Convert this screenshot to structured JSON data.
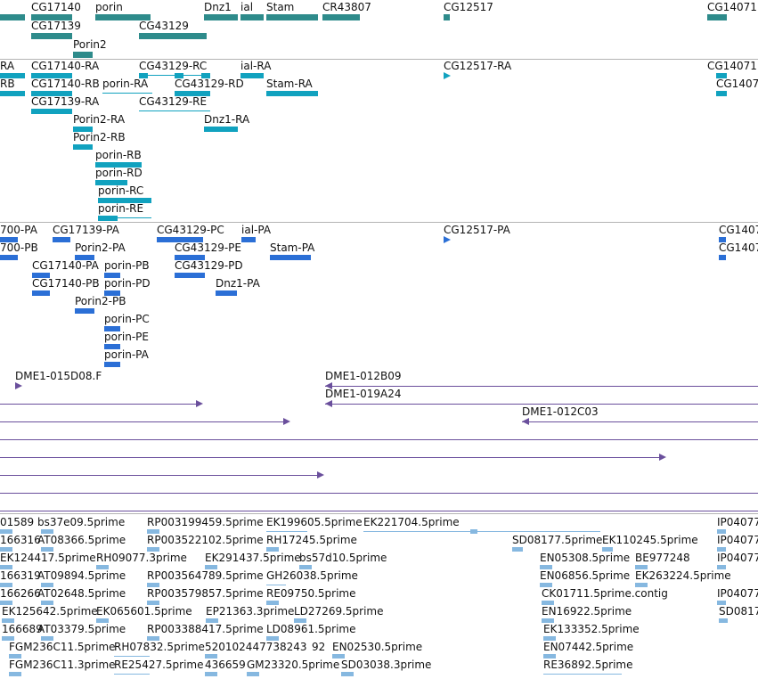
{
  "colors": {
    "gene": "#2e8b8b",
    "transcript": "#11a2bf",
    "protein": "#2b6fd6",
    "clone": "#6a4f9c",
    "est": "#86b8e0",
    "separator": "#b4b4b4"
  },
  "tracks": {
    "genes": [
      {
        "label": "CG17140",
        "color": "gene"
      },
      {
        "label": "porin",
        "color": "gene"
      },
      {
        "label": "Dnz1",
        "color": "gene"
      },
      {
        "label": "ial",
        "color": "gene"
      },
      {
        "label": "Stam",
        "color": "gene"
      },
      {
        "label": "CR43807",
        "color": "gene"
      },
      {
        "label": "CG12517",
        "color": "gene"
      },
      {
        "label": "CG14071",
        "color": "gene"
      },
      {
        "label": "CG17139",
        "color": "gene"
      },
      {
        "label": "CG43129",
        "color": "gene"
      },
      {
        "label": "Porin2",
        "color": "gene"
      }
    ],
    "transcripts": [
      {
        "label": "RA"
      },
      {
        "label": "CG17140-RA"
      },
      {
        "label": "CG43129-RC"
      },
      {
        "label": "ial-RA"
      },
      {
        "label": "CG12517-RA"
      },
      {
        "label": "CG14071"
      },
      {
        "label": "RB"
      },
      {
        "label": "CG17140-RB"
      },
      {
        "label": "porin-RA"
      },
      {
        "label": "CG43129-RD"
      },
      {
        "label": "Stam-RA"
      },
      {
        "label": "CG1407"
      },
      {
        "label": "CG17139-RA"
      },
      {
        "label": "CG43129-RE"
      },
      {
        "label": "Porin2-RA"
      },
      {
        "label": "Dnz1-RA"
      },
      {
        "label": "Porin2-RB"
      },
      {
        "label": "porin-RB"
      },
      {
        "label": "porin-RD"
      },
      {
        "label": "porin-RC"
      },
      {
        "label": "porin-RE"
      }
    ],
    "proteins": [
      {
        "label": "700-PA"
      },
      {
        "label": "CG17139-PA"
      },
      {
        "label": "CG43129-PC"
      },
      {
        "label": "ial-PA"
      },
      {
        "label": "CG12517-PA"
      },
      {
        "label": "CG1407"
      },
      {
        "label": "700-PB"
      },
      {
        "label": "Porin2-PA"
      },
      {
        "label": "CG43129-PE"
      },
      {
        "label": "Stam-PA"
      },
      {
        "label": "CG1407"
      },
      {
        "label": "CG17140-PA"
      },
      {
        "label": "porin-PB"
      },
      {
        "label": "CG43129-PD"
      },
      {
        "label": "CG17140-PB"
      },
      {
        "label": "porin-PD"
      },
      {
        "label": "Dnz1-PA"
      },
      {
        "label": "Porin2-PB"
      },
      {
        "label": "porin-PC"
      },
      {
        "label": "porin-PE"
      },
      {
        "label": "porin-PA"
      }
    ],
    "clones": [
      {
        "label": "DME1-015D08.F"
      },
      {
        "label": "DME1-012B09"
      },
      {
        "label": "DME1-019A24"
      },
      {
        "label": "DME1-012C03"
      }
    ],
    "ests": [
      {
        "label": "01589"
      },
      {
        "label": "bs37e09.5prime"
      },
      {
        "label": "RP003199459.5prime"
      },
      {
        "label": "EK199605.5prime"
      },
      {
        "label": "EK221704.5prime"
      },
      {
        "label": "IP04077"
      },
      {
        "label": "166316"
      },
      {
        "label": "AT08366.5prime"
      },
      {
        "label": "RP003522102.5prime"
      },
      {
        "label": "RH17245.5prime"
      },
      {
        "label": "SD08177.5prime"
      },
      {
        "label": "EK110245.5prime"
      },
      {
        "label": "IP04077"
      },
      {
        "label": "EK124417.5prime"
      },
      {
        "label": "RH09077.3prime"
      },
      {
        "label": "EK291437.5prime"
      },
      {
        "label": "bs57d10.5prime"
      },
      {
        "label": "EN05308.5prime"
      },
      {
        "label": "BE977248"
      },
      {
        "label": "IP04077"
      },
      {
        "label": "166319"
      },
      {
        "label": "AT09894.5prime"
      },
      {
        "label": "RP003564789.5prime"
      },
      {
        "label": "GH26038.5prime"
      },
      {
        "label": "EN06856.5prime"
      },
      {
        "label": "EK263224.5prime"
      },
      {
        "label": "166266"
      },
      {
        "label": "AT02648.5prime"
      },
      {
        "label": "RP003579857.5prime"
      },
      {
        "label": "RE09750.5prime"
      },
      {
        "label": "CK01711.5prime.contig"
      },
      {
        "label": "IP04077"
      },
      {
        "label": "EK125642.5prime"
      },
      {
        "label": "EK065601.5prime"
      },
      {
        "label": "EP21363.3prime"
      },
      {
        "label": "LD27269.5prime"
      },
      {
        "label": "EN16922.5prime"
      },
      {
        "label": "SD0817"
      },
      {
        "label": "166689"
      },
      {
        "label": "AT03379.5prime"
      },
      {
        "label": "RP003388417.5prime"
      },
      {
        "label": "LD08961.5prime"
      },
      {
        "label": "EK133352.5prime"
      },
      {
        "label": "FGM236C11.5prime"
      },
      {
        "label": "RH07832.5prime"
      },
      {
        "label": "520102447738243"
      },
      {
        "label": "92"
      },
      {
        "label": "EN02530.5prime"
      },
      {
        "label": "EN07442.5prime"
      },
      {
        "label": "FGM236C11.3prime"
      },
      {
        "label": "RE25427.5prime"
      },
      {
        "label": "436659"
      },
      {
        "label": "GM23320.5prime"
      },
      {
        "label": "SD03038.3prime"
      },
      {
        "label": "RE36892.5prime"
      }
    ]
  }
}
